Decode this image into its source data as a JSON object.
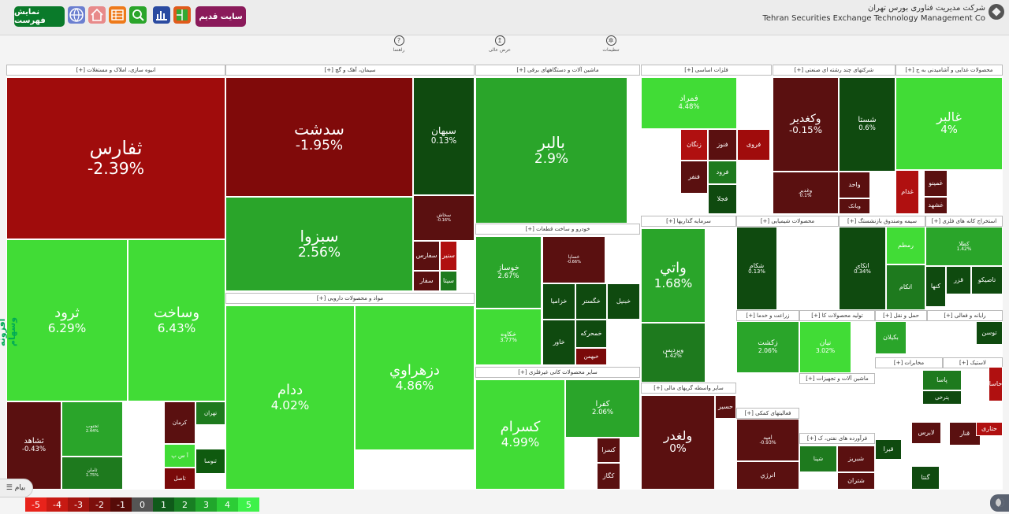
{
  "header": {
    "old_site": "سایت قدیم",
    "show_list": "نمایش فهرست",
    "company_fa": "شرکت مدیریت فناوری بورس تهران",
    "company_en": "Tehran Securities Exchange Technology Management Co"
  },
  "toolbar": {
    "help": "راهنما",
    "display": "عرض عالی",
    "settings": "تنظیمات"
  },
  "sectors": [
    {
      "id": "s1",
      "title": "انبوه سازی، املاک و مستغلات [+]"
    },
    {
      "id": "s2",
      "title": "سیمان، آهک و گچ [+]"
    },
    {
      "id": "s3",
      "title": "ماشین آلات و دستگاههای برقی [+]"
    },
    {
      "id": "s4",
      "title": "فلزات اساسی [+]"
    },
    {
      "id": "s5",
      "title": "شرکتهای چند رشته ای صنعتی [+]"
    },
    {
      "id": "s6",
      "title": "محصولات غذایی و آشامیدنی به ج [+]"
    },
    {
      "id": "s7",
      "title": "مواد و محصولات دارویی [+]"
    },
    {
      "id": "s8",
      "title": "خودرو و ساخت قطعات [+]"
    },
    {
      "id": "s9",
      "title": "سرمایه گذاریها [+]"
    },
    {
      "id": "s10",
      "title": "محصولات شیمیایی [+]"
    },
    {
      "id": "s11",
      "title": "سیمه وصندوق بازنشستگ [+]"
    },
    {
      "id": "s12",
      "title": "استخراج کانه های فلزی [+]"
    },
    {
      "id": "s13",
      "title": "سایر محصولات کانی غیرفلزی [+]"
    },
    {
      "id": "s14",
      "title": "سایر واسطه گریهای مالی [+]"
    },
    {
      "id": "s15",
      "title": "زراعت و خدما [+]"
    },
    {
      "id": "s16",
      "title": "تولید محصولات کا [+]"
    },
    {
      "id": "s17",
      "title": "حمل و نقل [+]"
    },
    {
      "id": "s18",
      "title": "رایانه و فعالی [+]"
    },
    {
      "id": "s19",
      "title": "ماشین آلات و تجهیزات [+]"
    },
    {
      "id": "s20",
      "title": "فعالیتهای کمکی [+]"
    },
    {
      "id": "s21",
      "title": "مخابرات [+]"
    },
    {
      "id": "s22",
      "title": "فرآورده های نفتی، ک [+]"
    },
    {
      "id": "s23",
      "title": "لاستیک [+]"
    }
  ],
  "tiles": [
    {
      "sym": "ثفارس",
      "pct": "-2.39%",
      "color": "#a00c0c"
    },
    {
      "sym": "ثرود",
      "pct": "6.29%",
      "color": "#41dc36"
    },
    {
      "sym": "وساخت",
      "pct": "6.43%",
      "color": "#41dc36"
    },
    {
      "sym": "ثشاهد",
      "pct": "-0.43%",
      "color": "#5a1010"
    },
    {
      "sym": "ثجنوب",
      "pct": "2.44%",
      "color": "#2aa52a"
    },
    {
      "sym": "ثامان",
      "pct": "1.75%",
      "color": "#1e7a1e"
    },
    {
      "sym": "کرمان",
      "pct": "",
      "color": "#5a1010"
    },
    {
      "sym": "تهران",
      "pct": "",
      "color": "#1e7a1e"
    },
    {
      "sym": "آ س پ",
      "pct": "",
      "color": "#41dc36"
    },
    {
      "sym": "ثاصل",
      "pct": "",
      "color": "#7a0a0a"
    },
    {
      "sym": "ثنوسا",
      "pct": "",
      "color": "#0f5a0f"
    },
    {
      "sym": "سدشت",
      "pct": "-1.95%",
      "color": "#800a0a"
    },
    {
      "sym": "سبزوا",
      "pct": "2.56%",
      "color": "#2aa52a"
    },
    {
      "sym": "سبهان",
      "pct": "0.13%",
      "color": "#0f4a0f"
    },
    {
      "sym": "سخاش",
      "pct": "-0.16%",
      "color": "#5a1010"
    },
    {
      "sym": "سفارس",
      "pct": "",
      "color": "#5a1010"
    },
    {
      "sym": "سنیر",
      "pct": "",
      "color": "#b01010"
    },
    {
      "sym": "سفار",
      "pct": "",
      "color": "#5a1010"
    },
    {
      "sym": "سیتا",
      "pct": "",
      "color": "#1e7a1e"
    },
    {
      "sym": "بالبر",
      "pct": "2.9%",
      "color": "#2aa52a"
    },
    {
      "sym": "ددام",
      "pct": "4.02%",
      "color": "#41dc36"
    },
    {
      "sym": "دزهراوي",
      "pct": "4.86%",
      "color": "#41dc36"
    },
    {
      "sym": "خوساز",
      "pct": "2.67%",
      "color": "#2aa52a"
    },
    {
      "sym": "خساپا",
      "pct": "-0.66%",
      "color": "#5a1010"
    },
    {
      "sym": "خکاوه",
      "pct": "3.77%",
      "color": "#41dc36"
    },
    {
      "sym": "خزامیا",
      "pct": "",
      "color": "#0f4a0f"
    },
    {
      "sym": "خگستر",
      "pct": "",
      "color": "#0f4a0f"
    },
    {
      "sym": "خبنیل",
      "pct": "",
      "color": "#0f4a0f"
    },
    {
      "sym": "خمحرکه",
      "pct": "",
      "color": "#0f4a0f"
    },
    {
      "sym": "خاور",
      "pct": "",
      "color": "#0f4a0f"
    },
    {
      "sym": "خبهمن",
      "pct": "",
      "color": "#7a0a0a"
    },
    {
      "sym": "کسرام",
      "pct": "4.99%",
      "color": "#41dc36"
    },
    {
      "sym": "کفرا",
      "pct": "2.06%",
      "color": "#2aa52a"
    },
    {
      "sym": "کسرا",
      "pct": "",
      "color": "#5a1010"
    },
    {
      "sym": "کگاز",
      "pct": "",
      "color": "#5a1010"
    },
    {
      "sym": "فمراد",
      "pct": "4.48%",
      "color": "#41dc36"
    },
    {
      "sym": "فنوز",
      "pct": "",
      "color": "#5a1010"
    },
    {
      "sym": "زنگان",
      "pct": "",
      "color": "#b01010"
    },
    {
      "sym": "فروی",
      "pct": "",
      "color": "#a00c0c"
    },
    {
      "sym": "فرود",
      "pct": "",
      "color": "#1e7a1e"
    },
    {
      "sym": "فنفر",
      "pct": "",
      "color": "#5a1010"
    },
    {
      "sym": "فجلا",
      "pct": "",
      "color": "#0f4a0f"
    },
    {
      "sym": "وکغدیر",
      "pct": "-0.15%",
      "color": "#5a1010"
    },
    {
      "sym": "شستا",
      "pct": "0.6%",
      "color": "#0f4a0f"
    },
    {
      "sym": "وغدیر",
      "pct": "0.1%",
      "color": "#5a1010"
    },
    {
      "sym": "واحد",
      "pct": "",
      "color": "#5a1010"
    },
    {
      "sym": "وبانک",
      "pct": "",
      "color": "#5a1010"
    },
    {
      "sym": "غالبر",
      "pct": "4%",
      "color": "#41dc36"
    },
    {
      "sym": "غدام",
      "pct": "",
      "color": "#b01010"
    },
    {
      "sym": "غمینو",
      "pct": "",
      "color": "#5a1010"
    },
    {
      "sym": "غشهد",
      "pct": "",
      "color": "#5a1010"
    },
    {
      "sym": "واتي",
      "pct": "1.68%",
      "color": "#2aa52a"
    },
    {
      "sym": "ویردیس",
      "pct": "1.42%",
      "color": "#1e7a1e"
    },
    {
      "sym": "شکام",
      "pct": "0.13%",
      "color": "#0f4a0f"
    },
    {
      "sym": "اتکاي",
      "pct": "0.34%",
      "color": "#0f4a0f"
    },
    {
      "sym": "رمطم",
      "pct": "",
      "color": "#41dc36"
    },
    {
      "sym": "اتکام",
      "pct": "",
      "color": "#1e7a1e"
    },
    {
      "sym": "کطلا",
      "pct": "1.42%",
      "color": "#2aa52a"
    },
    {
      "sym": "تاصیکو",
      "pct": "",
      "color": "#0f4a0f"
    },
    {
      "sym": "قزر",
      "pct": "",
      "color": "#0f4a0f"
    },
    {
      "sym": "کنها",
      "pct": "",
      "color": "#0f4a0f"
    },
    {
      "sym": "زکشت",
      "pct": "2.06%",
      "color": "#2aa52a"
    },
    {
      "sym": "نیان",
      "pct": "3.02%",
      "color": "#41dc36"
    },
    {
      "sym": "بکیلان",
      "pct": "",
      "color": "#2aa52a"
    },
    {
      "sym": "توسن",
      "pct": "",
      "color": "#0f4a0f"
    },
    {
      "sym": "ولغدر",
      "pct": "0%",
      "color": "#5a1010"
    },
    {
      "sym": "حسیر",
      "pct": "",
      "color": "#5a1010"
    },
    {
      "sym": "اميد",
      "pct": "-0.93%",
      "color": "#5a1010"
    },
    {
      "sym": "انرژي",
      "pct": "",
      "color": "#5a1010"
    },
    {
      "sym": "شپنا",
      "pct": "",
      "color": "#1e7a1e"
    },
    {
      "sym": "شتران",
      "pct": "",
      "color": "#5a1010"
    },
    {
      "sym": "شبریز",
      "pct": "",
      "color": "#5a1010"
    },
    {
      "sym": "پاسا",
      "pct": "",
      "color": "#1e7a1e"
    },
    {
      "sym": "پترخی",
      "pct": "",
      "color": "#0f4a0f"
    },
    {
      "sym": "لابرس",
      "pct": "",
      "color": "#5a1010"
    },
    {
      "sym": "قنار",
      "pct": "",
      "color": "#5a1010"
    },
    {
      "sym": "حتاری",
      "pct": "",
      "color": "#b01010"
    },
    {
      "sym": "گنتا",
      "pct": "",
      "color": "#0f4a0f"
    },
    {
      "sym": "حاسا",
      "pct": "",
      "color": "#b01010"
    },
    {
      "sym": "قیرا",
      "pct": "",
      "color": "#0f4a0f"
    }
  ],
  "legend": [
    {
      "label": "-5",
      "color": "#e8231b"
    },
    {
      "label": "-4",
      "color": "#c71a13"
    },
    {
      "label": "-3",
      "color": "#a3140f"
    },
    {
      "label": "-2",
      "color": "#7c0f0b"
    },
    {
      "label": "-1",
      "color": "#560b08"
    },
    {
      "label": "0",
      "color": "#555555"
    },
    {
      "label": "1",
      "color": "#0f5a1a"
    },
    {
      "label": "2",
      "color": "#187f23"
    },
    {
      "label": "3",
      "color": "#21a62c"
    },
    {
      "label": "4",
      "color": "#2ccd36"
    },
    {
      "label": "5",
      "color": "#3ef24a"
    }
  ],
  "side_label": "افزونه وسهام",
  "menu_label": "بیام"
}
